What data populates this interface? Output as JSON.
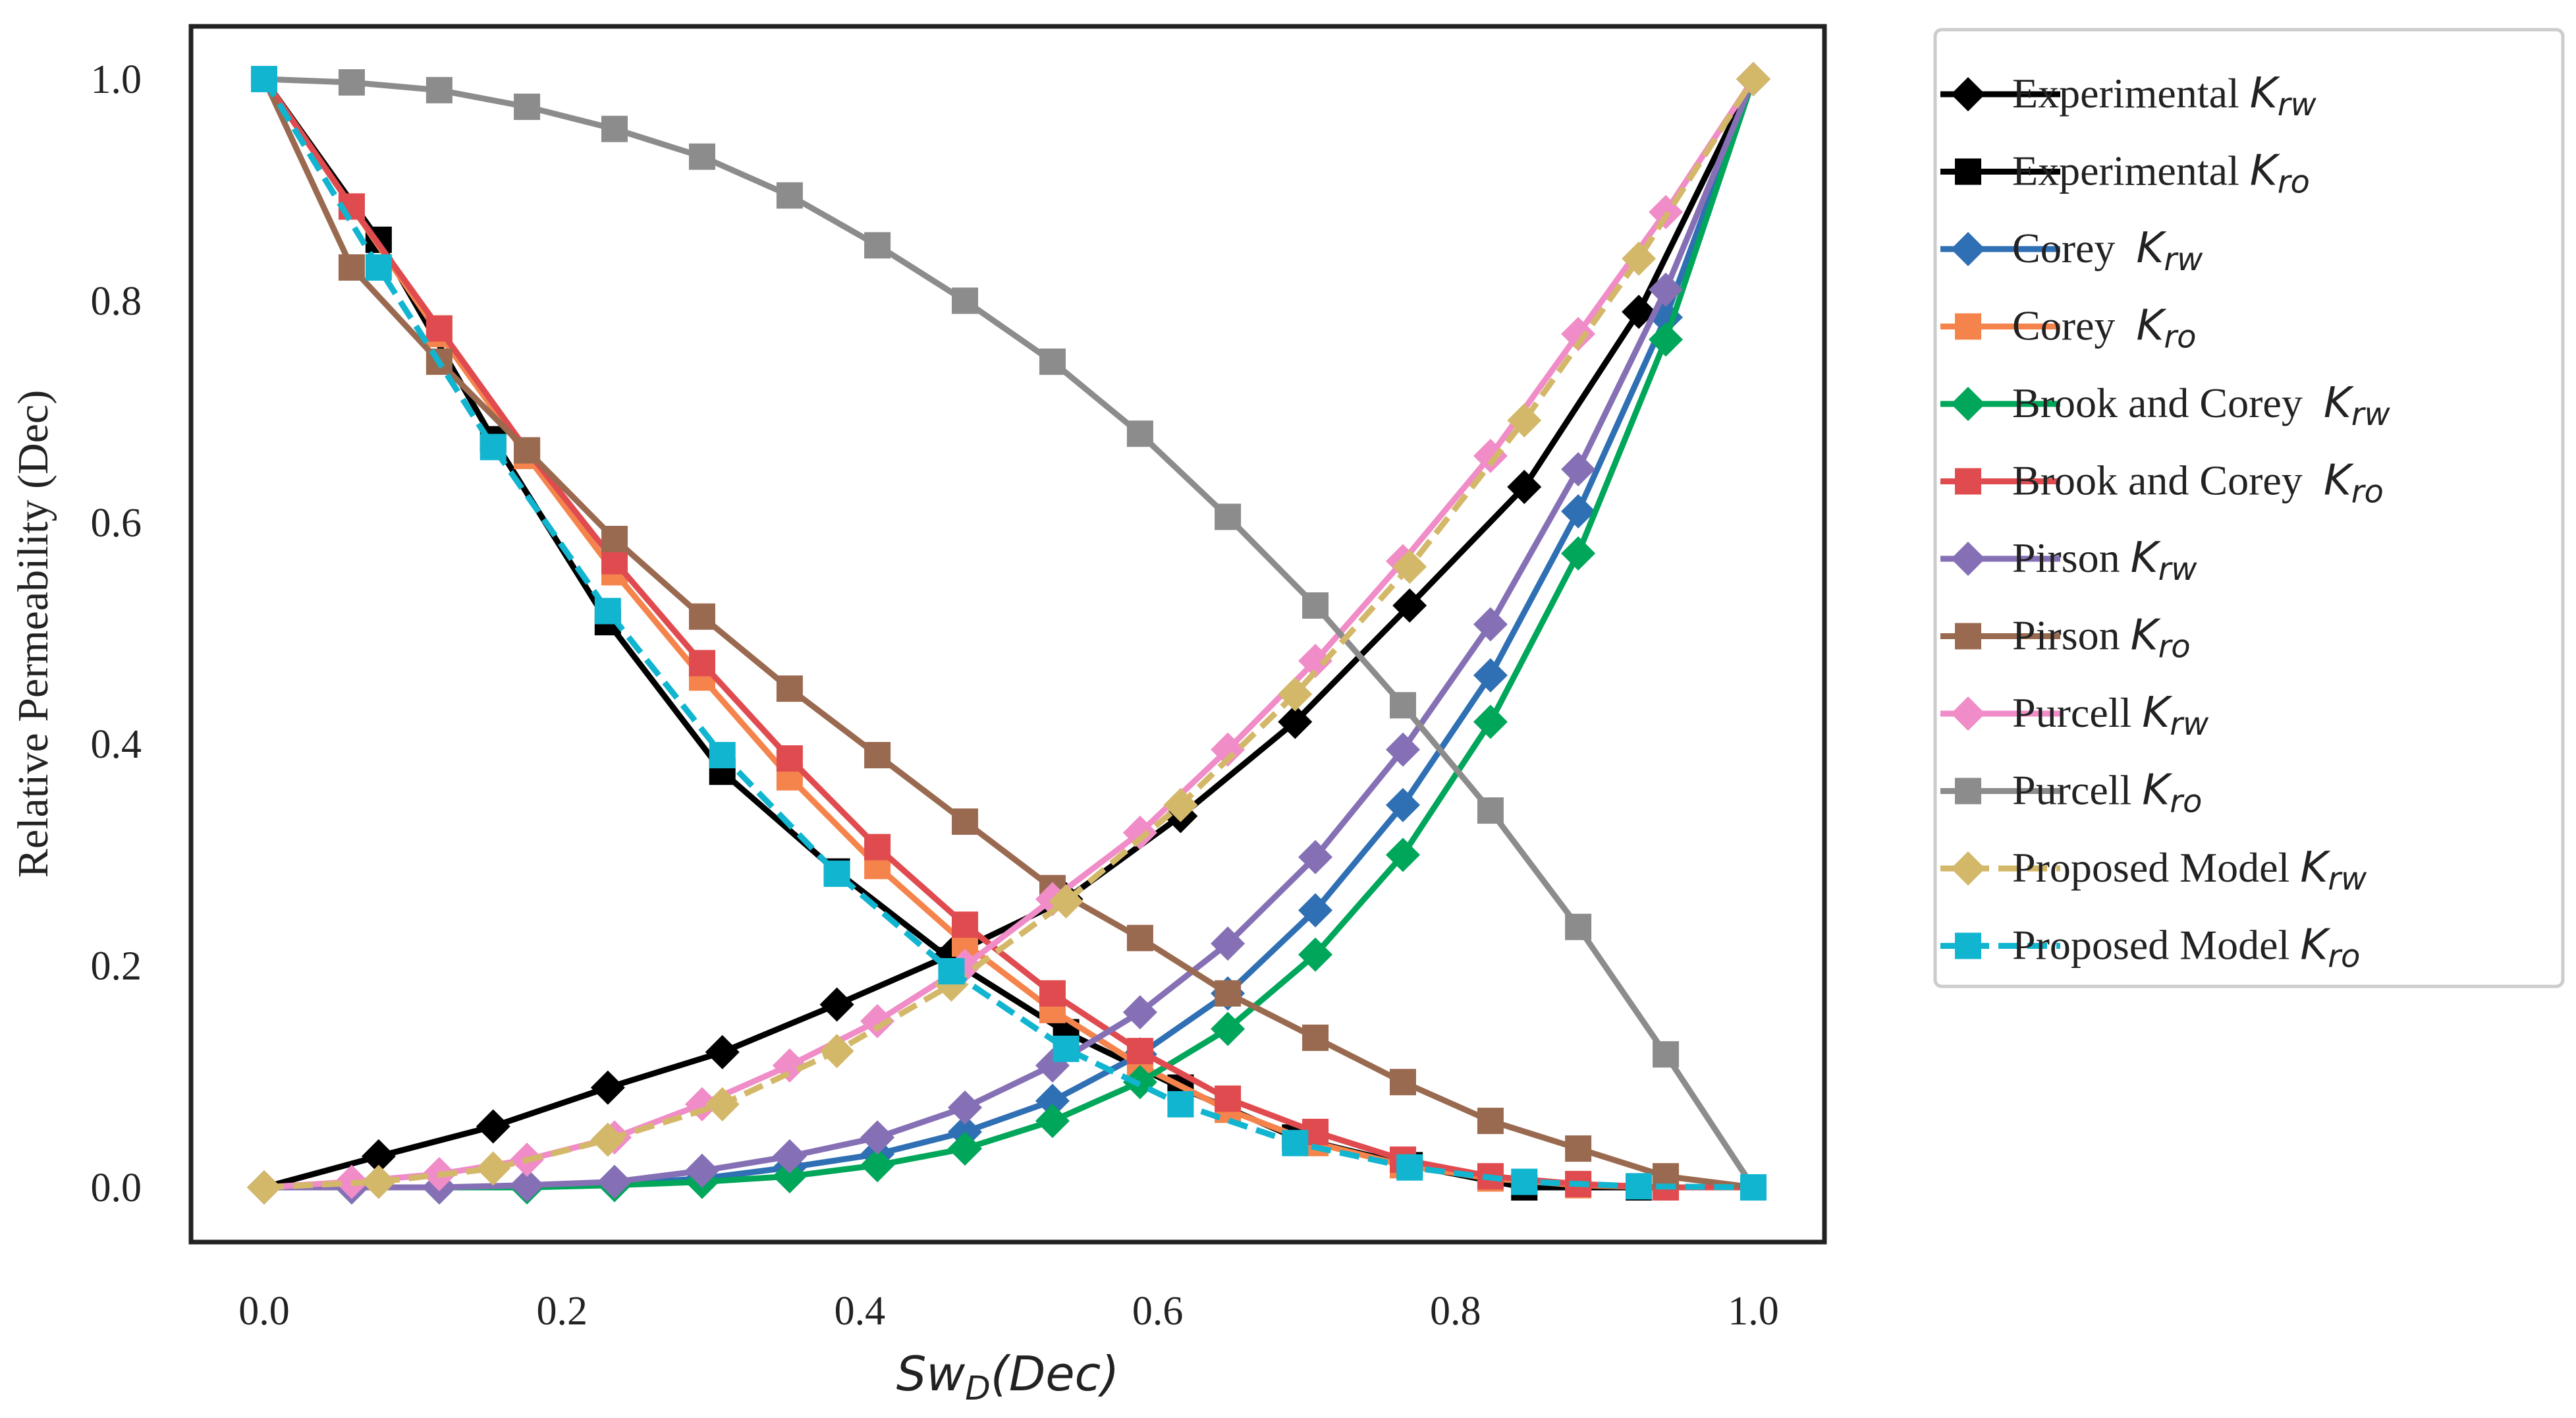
{
  "chart_data": {
    "type": "line",
    "title": "",
    "xlabel": {
      "main": "Sw",
      "sub": "D",
      "suffix": "(Dec)"
    },
    "ylabel": "Relative Permeability (Dec)",
    "xlim": [
      -0.07,
      1.05
    ],
    "ylim": [
      -0.05,
      1.05
    ],
    "xticks": [
      "0.0",
      "0.2",
      "0.4",
      "0.6",
      "0.8",
      "1.0"
    ],
    "yticks": [
      "0.0",
      "0.2",
      "0.4",
      "0.6",
      "0.8",
      "1.0"
    ],
    "grid": false,
    "legend_position": "outside-right",
    "series": [
      {
        "name": "Experimental ",
        "sub": "rw",
        "color": "#000000",
        "marker": "diamond",
        "dash": false,
        "x": [
          0,
          0.0769,
          0.1538,
          0.2308,
          0.3077,
          0.3846,
          0.4615,
          0.5385,
          0.6154,
          0.6923,
          0.7692,
          0.8462,
          0.9231,
          1.0
        ],
        "y": [
          0,
          0.028,
          0.055,
          0.09,
          0.122,
          0.165,
          0.21,
          0.26,
          0.335,
          0.42,
          0.525,
          0.632,
          0.79,
          1.0
        ]
      },
      {
        "name": "Experimental ",
        "sub": "ro",
        "color": "#000000",
        "marker": "square",
        "dash": false,
        "x": [
          0,
          0.0769,
          0.1538,
          0.2308,
          0.3077,
          0.3846,
          0.4615,
          0.5385,
          0.6154,
          0.6923,
          0.7692,
          0.8462,
          0.9231,
          1.0
        ],
        "y": [
          1.0,
          0.855,
          0.675,
          0.51,
          0.375,
          0.285,
          0.205,
          0.14,
          0.09,
          0.045,
          0.02,
          0.0,
          0.0,
          0.0
        ]
      },
      {
        "name": "Corey  ",
        "sub": "rw",
        "color": "#2f6fb3",
        "marker": "diamond",
        "dash": false,
        "x": [
          0,
          0.0588,
          0.1176,
          0.1765,
          0.2353,
          0.2941,
          0.3529,
          0.4118,
          0.4706,
          0.5294,
          0.5882,
          0.6471,
          0.7059,
          0.7647,
          0.8235,
          0.8824,
          0.9412,
          1.0
        ],
        "y": [
          0,
          0,
          0,
          0.001,
          0.003,
          0.008,
          0.018,
          0.03,
          0.05,
          0.078,
          0.12,
          0.175,
          0.25,
          0.345,
          0.462,
          0.61,
          0.785,
          1.0
        ]
      },
      {
        "name": "Corey  ",
        "sub": "ro",
        "color": "#f5844c",
        "marker": "square",
        "dash": false,
        "x": [
          0,
          0.0588,
          0.1176,
          0.1765,
          0.2353,
          0.2941,
          0.3529,
          0.4118,
          0.4706,
          0.5294,
          0.5882,
          0.6471,
          0.7059,
          0.7647,
          0.8235,
          0.8824,
          0.9412,
          1.0
        ],
        "y": [
          1.0,
          0.885,
          0.77,
          0.66,
          0.555,
          0.46,
          0.37,
          0.29,
          0.22,
          0.16,
          0.11,
          0.07,
          0.04,
          0.02,
          0.008,
          0.002,
          0,
          0
        ]
      },
      {
        "name": "Brook and Corey  ",
        "sub": "rw",
        "color": "#00a65a",
        "marker": "diamond",
        "dash": false,
        "x": [
          0,
          0.0588,
          0.1176,
          0.1765,
          0.2353,
          0.2941,
          0.3529,
          0.4118,
          0.4706,
          0.5294,
          0.5882,
          0.6471,
          0.7059,
          0.7647,
          0.8235,
          0.8824,
          0.9412,
          1.0
        ],
        "y": [
          0,
          0,
          0,
          0,
          0.002,
          0.005,
          0.01,
          0.02,
          0.035,
          0.06,
          0.095,
          0.143,
          0.21,
          0.3,
          0.42,
          0.572,
          0.765,
          1.0
        ]
      },
      {
        "name": "Brook and Corey  ",
        "sub": "ro",
        "color": "#e04b4f",
        "marker": "square",
        "dash": false,
        "x": [
          0,
          0.0588,
          0.1176,
          0.1765,
          0.2353,
          0.2941,
          0.3529,
          0.4118,
          0.4706,
          0.5294,
          0.5882,
          0.6471,
          0.7059,
          0.7647,
          0.8235,
          0.8824,
          0.9412,
          1.0
        ],
        "y": [
          1.0,
          0.885,
          0.775,
          0.665,
          0.565,
          0.473,
          0.387,
          0.307,
          0.237,
          0.175,
          0.123,
          0.08,
          0.05,
          0.025,
          0.01,
          0.003,
          0,
          0
        ]
      },
      {
        "name": "Pirson ",
        "sub": "rw",
        "color": "#8670b5",
        "marker": "diamond",
        "dash": false,
        "x": [
          0,
          0.0588,
          0.1176,
          0.1765,
          0.2353,
          0.2941,
          0.3529,
          0.4118,
          0.4706,
          0.5294,
          0.5882,
          0.6471,
          0.7059,
          0.7647,
          0.8235,
          0.8824,
          0.9412,
          1.0
        ],
        "y": [
          0,
          0,
          0,
          0.002,
          0.005,
          0.015,
          0.028,
          0.045,
          0.072,
          0.11,
          0.158,
          0.22,
          0.298,
          0.395,
          0.508,
          0.648,
          0.81,
          1.0
        ]
      },
      {
        "name": "Pirson ",
        "sub": "ro",
        "color": "#9a6a50",
        "marker": "square",
        "dash": false,
        "x": [
          0,
          0.0588,
          0.1176,
          0.1765,
          0.2353,
          0.2941,
          0.3529,
          0.4118,
          0.4706,
          0.5294,
          0.5882,
          0.6471,
          0.7059,
          0.7647,
          0.8235,
          0.8824,
          0.9412,
          1.0
        ],
        "y": [
          1.0,
          0.83,
          0.745,
          0.665,
          0.585,
          0.515,
          0.45,
          0.39,
          0.33,
          0.27,
          0.225,
          0.175,
          0.135,
          0.095,
          0.06,
          0.035,
          0.01,
          0
        ]
      },
      {
        "name": "Purcell ",
        "sub": "rw",
        "color": "#f08cc8",
        "marker": "diamond",
        "dash": false,
        "x": [
          0,
          0.0588,
          0.1176,
          0.1765,
          0.2353,
          0.2941,
          0.3529,
          0.4118,
          0.4706,
          0.5294,
          0.5882,
          0.6471,
          0.7059,
          0.7647,
          0.8235,
          0.8824,
          0.9412,
          1.0
        ],
        "y": [
          0,
          0.005,
          0.012,
          0.025,
          0.045,
          0.075,
          0.11,
          0.15,
          0.2,
          0.26,
          0.32,
          0.395,
          0.475,
          0.565,
          0.66,
          0.77,
          0.88,
          1.0
        ]
      },
      {
        "name": "Purcell ",
        "sub": "ro",
        "color": "#8c8c8c",
        "marker": "square",
        "dash": false,
        "x": [
          0,
          0.0588,
          0.1176,
          0.1765,
          0.2353,
          0.2941,
          0.3529,
          0.4118,
          0.4706,
          0.5294,
          0.5882,
          0.6471,
          0.7059,
          0.7647,
          0.8235,
          0.8824,
          0.9412,
          1.0
        ],
        "y": [
          1.0,
          0.997,
          0.99,
          0.975,
          0.955,
          0.93,
          0.895,
          0.85,
          0.8,
          0.745,
          0.68,
          0.605,
          0.525,
          0.435,
          0.34,
          0.235,
          0.12,
          0
        ]
      },
      {
        "name": "Proposed Model ",
        "sub": "rw",
        "color": "#d4b86a",
        "marker": "diamond",
        "dash": true,
        "x": [
          0,
          0.0769,
          0.1538,
          0.2308,
          0.3077,
          0.3846,
          0.4615,
          0.5385,
          0.6154,
          0.6923,
          0.7692,
          0.8462,
          0.9231,
          1.0
        ],
        "y": [
          0,
          0.005,
          0.017,
          0.043,
          0.075,
          0.123,
          0.183,
          0.258,
          0.345,
          0.445,
          0.56,
          0.692,
          0.838,
          1.0
        ]
      },
      {
        "name": "Proposed Model ",
        "sub": "ro",
        "color": "#11b5d0",
        "marker": "square",
        "dash": true,
        "x": [
          0,
          0.0769,
          0.1538,
          0.2308,
          0.3077,
          0.3846,
          0.4615,
          0.5385,
          0.6154,
          0.6923,
          0.7692,
          0.8462,
          0.9231,
          1.0
        ],
        "y": [
          1.0,
          0.83,
          0.668,
          0.52,
          0.39,
          0.283,
          0.195,
          0.125,
          0.075,
          0.04,
          0.018,
          0.005,
          0.001,
          0
        ]
      }
    ],
    "legend_k": "K"
  }
}
